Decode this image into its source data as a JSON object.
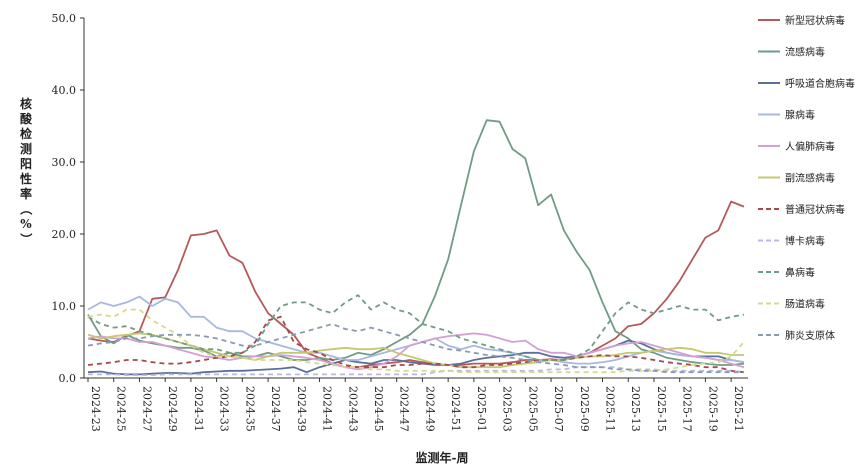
{
  "chart_data": {
    "type": "line",
    "xlabel": "监测年-周",
    "ylabel": "核酸检测阳性率（%）",
    "ylim": [
      0,
      50
    ],
    "yticks": [
      "0.0",
      "10.0",
      "20.0",
      "30.0",
      "40.0",
      "50.0"
    ],
    "x": [
      "2024-23",
      "2024-24",
      "2024-25",
      "2024-26",
      "2024-27",
      "2024-28",
      "2024-29",
      "2024-30",
      "2024-31",
      "2024-32",
      "2024-33",
      "2024-34",
      "2024-35",
      "2024-36",
      "2024-37",
      "2024-38",
      "2024-39",
      "2024-40",
      "2024-41",
      "2024-42",
      "2024-43",
      "2024-44",
      "2024-45",
      "2024-46",
      "2024-47",
      "2024-48",
      "2024-49",
      "2024-50",
      "2024-51",
      "2024-52",
      "2025-01",
      "2025-02",
      "2025-03",
      "2025-04",
      "2025-05",
      "2025-06",
      "2025-07",
      "2025-08",
      "2025-09",
      "2025-10",
      "2025-11",
      "2025-12",
      "2025-13",
      "2025-14",
      "2025-15",
      "2025-16",
      "2025-17",
      "2025-18",
      "2025-19",
      "2025-20",
      "2025-21",
      "2025-22"
    ],
    "xtick_labels": [
      "2024-23",
      "2024-25",
      "2024-27",
      "2024-29",
      "2024-31",
      "2024-33",
      "2024-35",
      "2024-37",
      "2024-39",
      "2024-41",
      "2024-43",
      "2024-45",
      "2024-47",
      "2024-49",
      "2024-51",
      "2025-01",
      "2025-03",
      "2025-05",
      "2025-07",
      "2025-09",
      "2025-11",
      "2025-13",
      "2025-15",
      "2025-17",
      "2025-19",
      "2025-21"
    ],
    "legend_position": "right",
    "series": [
      {
        "name": "新型冠状病毒",
        "color": "#b55a5a",
        "dash": "solid",
        "values": [
          5.5,
          5.2,
          5.0,
          5.8,
          6.5,
          11.0,
          11.2,
          15.0,
          19.8,
          20.0,
          20.5,
          17.0,
          16.0,
          12.0,
          9.0,
          7.5,
          6.0,
          3.5,
          2.8,
          2.0,
          1.5,
          1.5,
          1.8,
          2.0,
          2.2,
          2.5,
          2.2,
          2.0,
          1.8,
          1.8,
          2.0,
          2.0,
          2.0,
          2.2,
          2.5,
          2.5,
          2.6,
          2.5,
          3.0,
          3.5,
          4.5,
          5.5,
          7.2,
          7.5,
          9.0,
          11.0,
          13.5,
          16.5,
          19.5,
          20.5,
          24.5,
          23.8
        ]
      },
      {
        "name": "流感病毒",
        "color": "#6f9c84",
        "dash": "solid",
        "values": [
          8.8,
          5.8,
          4.8,
          6.0,
          5.2,
          4.8,
          4.5,
          4.2,
          4.2,
          3.8,
          3.0,
          3.5,
          3.0,
          3.0,
          3.5,
          3.0,
          2.5,
          2.5,
          2.8,
          2.5,
          2.8,
          3.5,
          3.2,
          4.0,
          5.0,
          6.0,
          7.5,
          11.5,
          16.5,
          24.0,
          31.5,
          35.8,
          35.6,
          31.8,
          30.5,
          24.0,
          25.5,
          20.5,
          17.5,
          15.0,
          10.5,
          6.5,
          5.5,
          4.0,
          3.5,
          2.8,
          2.5,
          2.2,
          2.0,
          1.8,
          1.8,
          2.0
        ]
      },
      {
        "name": "呼吸道合胞病毒",
        "color": "#5a6f9c",
        "dash": "solid",
        "values": [
          0.8,
          0.9,
          0.6,
          0.5,
          0.5,
          0.6,
          0.7,
          0.7,
          0.6,
          0.8,
          0.9,
          1.0,
          1.0,
          1.1,
          1.2,
          1.3,
          1.5,
          0.8,
          1.5,
          2.0,
          2.5,
          2.2,
          2.0,
          2.5,
          2.5,
          2.2,
          2.0,
          1.8,
          1.8,
          2.0,
          2.5,
          2.8,
          3.0,
          3.2,
          3.5,
          3.5,
          3.0,
          2.8,
          3.0,
          3.5,
          4.0,
          4.5,
          5.2,
          4.8,
          4.0,
          3.5,
          3.2,
          3.0,
          3.0,
          3.0,
          2.5,
          2.2
        ]
      },
      {
        "name": "腺病毒",
        "color": "#a8b8e0",
        "dash": "solid",
        "values": [
          9.5,
          10.5,
          10.0,
          10.5,
          11.3,
          10.0,
          11.0,
          10.5,
          8.5,
          8.5,
          7.0,
          6.5,
          6.5,
          5.5,
          5.0,
          4.5,
          4.0,
          3.5,
          3.5,
          3.0,
          2.5,
          2.5,
          3.0,
          3.5,
          4.0,
          4.5,
          5.0,
          5.5,
          4.5,
          4.0,
          4.5,
          4.0,
          3.8,
          3.5,
          3.0,
          2.5,
          2.5,
          2.2,
          2.0,
          2.0,
          2.2,
          2.5,
          3.0,
          3.5,
          3.8,
          3.5,
          3.2,
          3.0,
          2.8,
          2.5,
          2.5,
          2.2
        ]
      },
      {
        "name": "人偏肺病毒",
        "color": "#d4a0d4",
        "dash": "solid",
        "values": [
          5.5,
          5.8,
          5.5,
          5.5,
          5.0,
          5.0,
          4.5,
          4.0,
          3.5,
          3.0,
          2.8,
          2.5,
          2.8,
          3.0,
          3.0,
          3.2,
          3.0,
          2.8,
          2.5,
          2.0,
          1.5,
          1.2,
          1.5,
          2.0,
          3.0,
          4.5,
          5.0,
          5.5,
          5.8,
          6.0,
          6.2,
          6.0,
          5.5,
          5.0,
          5.2,
          4.0,
          3.5,
          3.5,
          3.0,
          3.5,
          4.0,
          4.5,
          4.8,
          5.0,
          4.5,
          4.0,
          3.5,
          3.0,
          2.8,
          2.5,
          2.0,
          1.5
        ]
      },
      {
        "name": "副流感病毒",
        "color": "#c4c870",
        "dash": "solid",
        "values": [
          6.0,
          5.5,
          5.8,
          6.0,
          6.2,
          6.0,
          5.5,
          5.0,
          4.5,
          4.0,
          3.5,
          3.0,
          2.8,
          2.5,
          3.0,
          3.5,
          3.5,
          3.5,
          3.8,
          4.0,
          4.2,
          4.0,
          4.0,
          4.2,
          3.5,
          3.0,
          2.5,
          2.0,
          1.8,
          1.5,
          1.5,
          1.5,
          1.5,
          1.8,
          2.0,
          2.2,
          2.5,
          2.5,
          2.8,
          3.0,
          3.0,
          3.2,
          3.5,
          3.5,
          3.8,
          4.0,
          4.2,
          4.0,
          3.5,
          3.5,
          3.2,
          3.2
        ]
      },
      {
        "name": "普通冠状病毒",
        "color": "#a84848",
        "dash": "dashed",
        "values": [
          1.8,
          2.0,
          2.2,
          2.5,
          2.5,
          2.2,
          2.0,
          2.0,
          2.2,
          2.5,
          2.8,
          3.0,
          3.5,
          5.0,
          8.0,
          8.5,
          5.0,
          4.0,
          3.5,
          2.5,
          1.8,
          1.5,
          1.5,
          1.5,
          1.8,
          1.8,
          2.0,
          2.0,
          1.8,
          1.5,
          1.5,
          1.8,
          1.8,
          2.0,
          2.2,
          2.5,
          2.5,
          2.5,
          2.8,
          3.0,
          3.2,
          3.0,
          3.0,
          2.8,
          2.5,
          2.2,
          2.0,
          1.8,
          1.5,
          1.5,
          1.0,
          0.8
        ]
      },
      {
        "name": "博卡病毒",
        "color": "#b8b8e0",
        "dash": "dashed",
        "values": [
          0.5,
          0.5,
          0.5,
          0.4,
          0.4,
          0.4,
          0.5,
          0.5,
          0.5,
          0.5,
          0.5,
          0.5,
          0.5,
          0.5,
          0.5,
          0.5,
          0.5,
          0.5,
          0.5,
          0.5,
          0.5,
          0.5,
          0.5,
          0.5,
          0.5,
          0.5,
          0.5,
          0.8,
          1.0,
          1.0,
          1.0,
          1.0,
          1.0,
          1.0,
          1.0,
          1.0,
          1.2,
          1.2,
          1.5,
          1.5,
          1.5,
          1.5,
          1.2,
          1.2,
          1.2,
          1.0,
          1.0,
          1.0,
          1.0,
          1.0,
          1.0,
          0.8
        ]
      },
      {
        "name": "鼻病毒",
        "color": "#6f9c84",
        "dash": "dashed",
        "values": [
          8.5,
          7.5,
          7.0,
          7.2,
          6.5,
          6.0,
          5.5,
          5.0,
          4.5,
          4.0,
          4.0,
          3.5,
          3.5,
          4.5,
          7.5,
          10.0,
          10.5,
          10.5,
          9.5,
          9.0,
          10.5,
          11.5,
          9.5,
          10.5,
          9.5,
          9.0,
          7.5,
          7.0,
          6.5,
          5.5,
          5.0,
          4.5,
          4.0,
          3.5,
          3.0,
          2.5,
          2.5,
          2.5,
          3.0,
          4.0,
          6.5,
          9.0,
          10.5,
          9.5,
          9.0,
          9.5,
          10.0,
          9.5,
          9.5,
          8.0,
          8.5,
          8.8
        ]
      },
      {
        "name": "肠道病毒",
        "color": "#d8d890",
        "dash": "dashed",
        "values": [
          8.5,
          8.8,
          8.5,
          9.5,
          9.5,
          8.0,
          7.0,
          6.0,
          4.5,
          3.5,
          3.0,
          3.0,
          2.8,
          2.5,
          2.5,
          2.5,
          2.5,
          2.2,
          2.0,
          1.8,
          1.5,
          1.5,
          1.2,
          1.2,
          1.0,
          1.0,
          1.0,
          1.0,
          1.0,
          0.8,
          0.8,
          0.8,
          0.8,
          0.8,
          0.8,
          0.8,
          0.8,
          0.8,
          0.8,
          0.8,
          0.8,
          0.8,
          1.0,
          1.0,
          1.0,
          1.2,
          1.5,
          1.8,
          2.0,
          2.2,
          3.0,
          5.0
        ]
      },
      {
        "name": "肺炎支原体",
        "color": "#8a9ab0",
        "dash": "dashed",
        "values": [
          4.5,
          4.8,
          5.0,
          5.5,
          5.5,
          5.8,
          6.0,
          6.0,
          6.0,
          5.8,
          5.5,
          5.0,
          4.5,
          4.5,
          5.0,
          5.5,
          6.0,
          6.5,
          7.0,
          7.5,
          6.8,
          6.5,
          7.0,
          6.5,
          6.0,
          5.5,
          5.0,
          4.5,
          4.0,
          3.8,
          3.5,
          3.2,
          3.0,
          2.8,
          2.5,
          2.2,
          2.0,
          1.8,
          1.5,
          1.5,
          1.5,
          1.2,
          1.2,
          1.0,
          1.0,
          0.8,
          0.8,
          0.8,
          0.8,
          0.8,
          0.8,
          0.8
        ]
      }
    ]
  }
}
